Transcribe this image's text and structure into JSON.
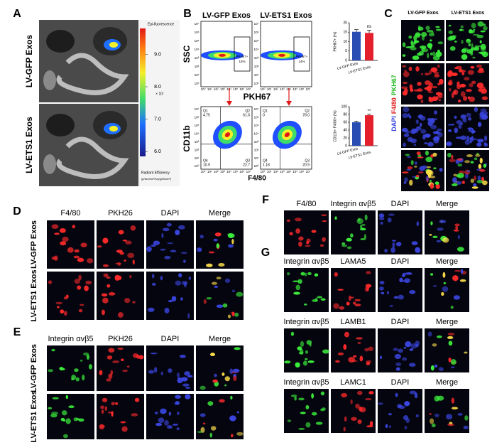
{
  "panel_a": {
    "label": "A",
    "rows": [
      "LV-GFP Exos",
      "LV-ETS1 Exos"
    ],
    "colorbar": {
      "title": "Epi-fluorescence",
      "multiplier": "× 10⁷",
      "lim": [
        5.85,
        9.8
      ],
      "ticks": [
        {
          "value": 9,
          "label": "9.0"
        },
        {
          "value": 8,
          "label": "8.0"
        },
        {
          "value": 7,
          "label": "7.0"
        },
        {
          "value": 6,
          "label": "6.0"
        }
      ],
      "caption": "Radiant Efficiency",
      "units": "(p/sec/cm²/sr)/(µW/cm²)"
    }
  },
  "panel_b": {
    "label": "B",
    "columns": [
      "LV-GFP Exos",
      "LV-ETS1 Exos"
    ],
    "top_axes": {
      "y": "SSC",
      "x": "PKH67"
    },
    "gates": [
      {
        "name": "PKH67+",
        "percent": "15%"
      },
      {
        "name": "PKH67+",
        "percent": "14%"
      }
    ],
    "log_ticks": [
      "10⁰",
      "10¹",
      "10²",
      "10³",
      "10⁴",
      "10⁵",
      "10⁶",
      "10⁷"
    ],
    "bottom_axes": {
      "y": "CD11b",
      "x": "F4/80"
    },
    "quadrant_names": [
      "Q1",
      "Q2",
      "Q3",
      "Q4"
    ],
    "quadrants": [
      [
        "4.75",
        "61.6",
        "22.7",
        "10.9"
      ],
      [
        "0",
        "78.0",
        "20.9",
        "1.18"
      ]
    ],
    "charts": [
      {
        "type": "bar",
        "ylabel": "PKH67+ (%)",
        "categories": [
          "LV-GFP Exos",
          "LV-ETS1 Exos"
        ],
        "values": [
          15.2,
          14.6
        ],
        "errors": [
          1.2,
          1.4
        ],
        "colors": [
          "#2a4db3",
          "#e3202b"
        ],
        "ylim": [
          0,
          20
        ],
        "yticks": [
          0,
          5,
          10,
          15,
          20
        ],
        "annotation": "ns"
      },
      {
        "type": "bar",
        "ylabel": "CD11b+ F4/80+ (%)",
        "categories": [
          "LV-GFP Exos",
          "LV-ETS1 Exos"
        ],
        "values": [
          60,
          78
        ],
        "errors": [
          3,
          3
        ],
        "colors": [
          "#2a4db3",
          "#e3202b"
        ],
        "ylim": [
          0,
          100
        ],
        "yticks": [
          0,
          20,
          40,
          60,
          80,
          100
        ],
        "annotation": "**"
      }
    ]
  },
  "panel_c": {
    "label": "C",
    "columns": [
      "LV-GFP Exos",
      "LV-ETS1 Exos"
    ],
    "stains": [
      "DAPI",
      "F4/80",
      "PKH67"
    ]
  },
  "panel_d": {
    "label": "D",
    "columns": [
      "F4/80",
      "PKH26",
      "DAPI",
      "Merge"
    ],
    "rows": [
      "LV-GFP Exos",
      "LV-ETS1 Exos"
    ]
  },
  "panel_e": {
    "label": "E",
    "columns": [
      "Integrin αvβ5",
      "PKH26",
      "DAPI",
      "Merge"
    ],
    "rows": [
      "LV-GFP Exos",
      "LV-ETS1 Exos"
    ]
  },
  "panel_f": {
    "label": "F",
    "columns": [
      "F4/80",
      "Integrin αvβ5",
      "DAPI",
      "Merge"
    ]
  },
  "panel_g": {
    "label": "G",
    "rows": [
      {
        "columns": [
          "Integrin αvβ5",
          "LAMA5",
          "DAPI",
          "Merge"
        ]
      },
      {
        "columns": [
          "Integrin αvβ5",
          "LAMB1",
          "DAPI",
          "Merge"
        ]
      },
      {
        "columns": [
          "Integrin αvβ5",
          "LAMC1",
          "DAPI",
          "Merge"
        ]
      }
    ]
  }
}
